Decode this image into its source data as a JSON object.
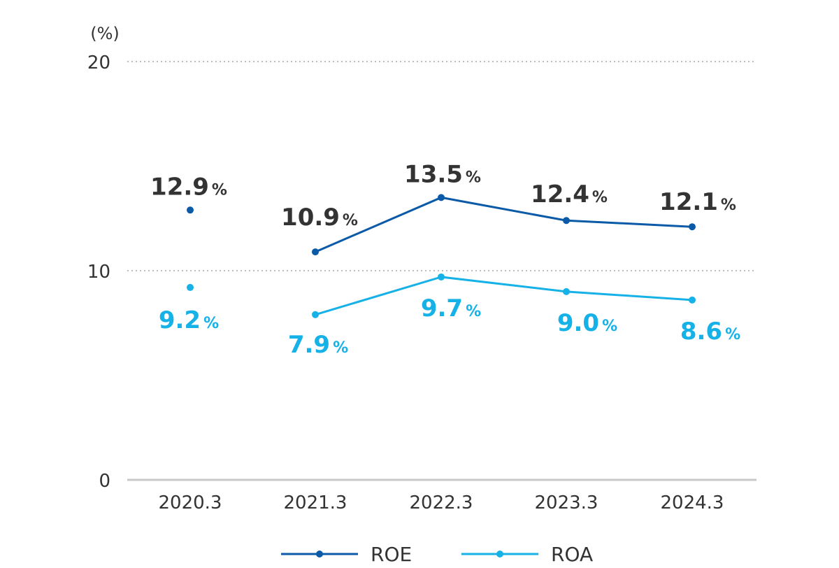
{
  "chart_data": {
    "type": "line",
    "unit_label": "(%)",
    "categories": [
      "2020.3",
      "2021.3",
      "2022.3",
      "2023.3",
      "2024.3"
    ],
    "yticks": [
      "0",
      "10",
      "20"
    ],
    "ylim": [
      0,
      20
    ],
    "grid": "horizontal dotted at 10 and 20",
    "legend_position": "bottom-center",
    "value_suffix": "%",
    "series": [
      {
        "name": "ROE",
        "color": "#0a5aa8",
        "label_color": "#333333",
        "values": [
          12.9,
          10.9,
          13.5,
          12.4,
          12.1
        ],
        "labels": [
          "12.9",
          "10.9",
          "13.5",
          "12.4",
          "12.1"
        ],
        "connected_from_index": 1
      },
      {
        "name": "ROA",
        "color": "#16b1e6",
        "label_color": "#16b1e6",
        "values": [
          9.2,
          7.9,
          9.7,
          9.0,
          8.6
        ],
        "labels": [
          "9.2",
          "7.9",
          "9.7",
          "9.0",
          "8.6"
        ],
        "connected_from_index": 1
      }
    ]
  }
}
